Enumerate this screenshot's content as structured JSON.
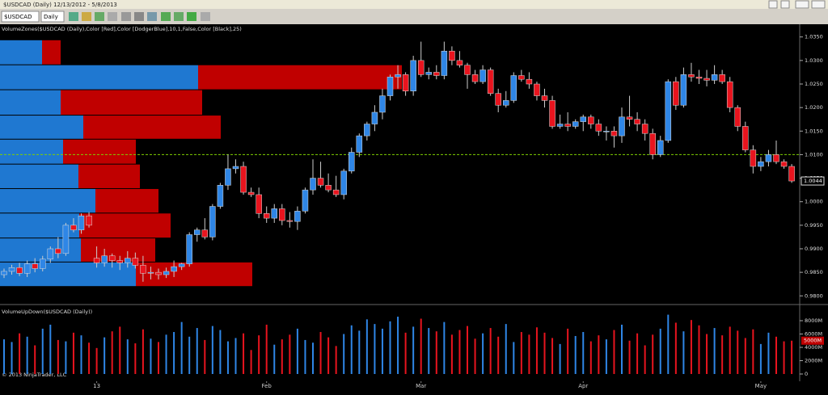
{
  "window_title": "$USDCAD (Daily)  12/13/2012 - 5/8/2013",
  "toolbar": {
    "instrument": "$USDCAD",
    "period": "Daily"
  },
  "chart_data": {
    "type": "candlestick",
    "indicator_label": "VolumeZones($USDCAD (Daily),Color [Red],Color [DodgerBlue],10,1,False,Color [Black],25)",
    "volume_label": "VolumeUpDown($USDCAD (Daily))",
    "copyright": "© 2013 NinjaTrader, LLC",
    "up_color": "#2f86e6",
    "down_color": "#e8141e",
    "zone_up_color": "#1f78d1",
    "zone_down_color": "#c00000",
    "reference_line": 1.01,
    "reference_color": "#7fd000",
    "last_price": {
      "value": 1.0044,
      "label": "1.0044"
    },
    "last_volume": {
      "value": 5000,
      "label": "5000M"
    },
    "categories": [
      null,
      null,
      null,
      null,
      null,
      null,
      null,
      null,
      null,
      null,
      null,
      null,
      "13",
      null,
      null,
      null,
      null,
      null,
      null,
      null,
      null,
      null,
      null,
      null,
      null,
      null,
      null,
      null,
      null,
      null,
      null,
      null,
      null,
      null,
      "Feb",
      null,
      null,
      null,
      null,
      null,
      null,
      null,
      null,
      null,
      null,
      null,
      null,
      null,
      null,
      null,
      null,
      null,
      null,
      null,
      "Mar",
      null,
      null,
      null,
      null,
      null,
      null,
      null,
      null,
      null,
      null,
      null,
      null,
      null,
      null,
      null,
      null,
      null,
      null,
      null,
      null,
      "Apr",
      null,
      null,
      null,
      null,
      null,
      null,
      null,
      null,
      null,
      null,
      null,
      null,
      null,
      null,
      null,
      null,
      null,
      null,
      null,
      null,
      null,
      null,
      "May",
      null,
      null,
      null,
      null
    ],
    "ohlc": [
      [
        0.9845,
        0.9858,
        0.9838,
        0.9852
      ],
      [
        0.9852,
        0.9866,
        0.9845,
        0.986
      ],
      [
        0.986,
        0.987,
        0.9842,
        0.9848
      ],
      [
        0.9848,
        0.9875,
        0.984,
        0.9868
      ],
      [
        0.9868,
        0.988,
        0.985,
        0.9858
      ],
      [
        0.9858,
        0.9885,
        0.9852,
        0.9878
      ],
      [
        0.9878,
        0.9905,
        0.987,
        0.99
      ],
      [
        0.99,
        0.9925,
        0.988,
        0.989
      ],
      [
        0.989,
        0.9955,
        0.9885,
        0.995
      ],
      [
        0.995,
        0.9965,
        0.9935,
        0.994
      ],
      [
        0.994,
        0.9975,
        0.9932,
        0.997
      ],
      [
        0.997,
        0.9978,
        0.9945,
        0.995
      ],
      [
        0.988,
        0.9905,
        0.986,
        0.987
      ],
      [
        0.987,
        0.99,
        0.9862,
        0.9885
      ],
      [
        0.9885,
        0.989,
        0.986,
        0.9875
      ],
      [
        0.9875,
        0.9885,
        0.9855,
        0.987
      ],
      [
        0.987,
        0.9895,
        0.986,
        0.988
      ],
      [
        0.988,
        0.9892,
        0.9858,
        0.9865
      ],
      [
        0.9865,
        0.9885,
        0.983,
        0.9848
      ],
      [
        0.9848,
        0.9862,
        0.9835,
        0.985
      ],
      [
        0.985,
        0.9858,
        0.9835,
        0.9845
      ],
      [
        0.9845,
        0.986,
        0.9838,
        0.9852
      ],
      [
        0.9852,
        0.9875,
        0.984,
        0.9862
      ],
      [
        0.9862,
        0.987,
        0.9855,
        0.9868
      ],
      [
        0.9868,
        0.9935,
        0.9862,
        0.993
      ],
      [
        0.993,
        0.9945,
        0.9915,
        0.994
      ],
      [
        0.994,
        0.9965,
        0.992,
        0.9925
      ],
      [
        0.9925,
        0.9995,
        0.9918,
        0.999
      ],
      [
        0.999,
        1.004,
        0.9985,
        1.0035
      ],
      [
        1.0035,
        1.01,
        1.0025,
        1.007
      ],
      [
        1.007,
        1.009,
        1.006,
        1.0075
      ],
      [
        1.0075,
        1.0085,
        1.0015,
        1.002
      ],
      [
        1.002,
        1.003,
        1.001,
        1.0015
      ],
      [
        1.0015,
        1.003,
        0.9965,
        0.9975
      ],
      [
        0.9975,
        0.999,
        0.9955,
        0.9965
      ],
      [
        0.9965,
        0.9995,
        0.9955,
        0.9985
      ],
      [
        0.9985,
        0.9995,
        0.995,
        0.996
      ],
      [
        0.996,
        0.9978,
        0.9945,
        0.9958
      ],
      [
        0.9958,
        0.999,
        0.994,
        0.998
      ],
      [
        0.998,
        1.003,
        0.9975,
        1.0025
      ],
      [
        1.0025,
        1.009,
        1.0015,
        1.005
      ],
      [
        1.005,
        1.0085,
        1.003,
        1.0035
      ],
      [
        1.0035,
        1.006,
        1.002,
        1.0025
      ],
      [
        1.0025,
        1.0055,
        1.001,
        1.0015
      ],
      [
        1.0015,
        1.007,
        1.0005,
        1.0065
      ],
      [
        1.0065,
        1.0115,
        1.006,
        1.0105
      ],
      [
        1.0105,
        1.0145,
        1.0095,
        1.014
      ],
      [
        1.014,
        1.017,
        1.013,
        1.0165
      ],
      [
        1.0165,
        1.0205,
        1.015,
        1.019
      ],
      [
        1.019,
        1.024,
        1.0175,
        1.0225
      ],
      [
        1.0225,
        1.027,
        1.0215,
        1.0265
      ],
      [
        1.0265,
        1.029,
        1.024,
        1.027
      ],
      [
        1.027,
        1.0275,
        1.0225,
        1.0235
      ],
      [
        1.0235,
        1.031,
        1.0225,
        1.03
      ],
      [
        1.03,
        1.034,
        1.0265,
        1.027
      ],
      [
        1.027,
        1.0285,
        1.026,
        1.0275
      ],
      [
        1.0275,
        1.029,
        1.026,
        1.0268
      ],
      [
        1.0268,
        1.034,
        1.026,
        1.032
      ],
      [
        1.032,
        1.033,
        1.029,
        1.03
      ],
      [
        1.03,
        1.032,
        1.0285,
        1.029
      ],
      [
        1.029,
        1.0295,
        1.024,
        1.027
      ],
      [
        1.027,
        1.028,
        1.025,
        1.0255
      ],
      [
        1.0255,
        1.029,
        1.025,
        1.028
      ],
      [
        1.028,
        1.0285,
        1.0225,
        1.023
      ],
      [
        1.023,
        1.024,
        1.019,
        1.0205
      ],
      [
        1.0205,
        1.0235,
        1.02,
        1.0215
      ],
      [
        1.0215,
        1.0275,
        1.021,
        1.0268
      ],
      [
        1.0268,
        1.028,
        1.0255,
        1.026
      ],
      [
        1.026,
        1.0275,
        1.024,
        1.025
      ],
      [
        1.025,
        1.0255,
        1.0215,
        1.0225
      ],
      [
        1.0225,
        1.024,
        1.02,
        1.0215
      ],
      [
        1.0215,
        1.0225,
        1.0155,
        1.016
      ],
      [
        1.016,
        1.0185,
        1.0155,
        1.0165
      ],
      [
        1.0165,
        1.019,
        1.015,
        1.016
      ],
      [
        1.016,
        1.0175,
        1.0155,
        1.017
      ],
      [
        1.017,
        1.0185,
        1.015,
        1.018
      ],
      [
        1.018,
        1.0185,
        1.0155,
        1.0165
      ],
      [
        1.0165,
        1.0175,
        1.014,
        1.015
      ],
      [
        1.015,
        1.016,
        1.013,
        1.015
      ],
      [
        1.015,
        1.016,
        1.0115,
        1.014
      ],
      [
        1.014,
        1.02,
        1.0125,
        1.018
      ],
      [
        1.018,
        1.0225,
        1.016,
        1.0175
      ],
      [
        1.0175,
        1.019,
        1.015,
        1.0165
      ],
      [
        1.0165,
        1.0175,
        1.013,
        1.0145
      ],
      [
        1.0145,
        1.0155,
        1.009,
        1.01
      ],
      [
        1.01,
        1.014,
        1.0095,
        1.013
      ],
      [
        1.013,
        1.026,
        1.0125,
        1.0255
      ],
      [
        1.0255,
        1.0265,
        1.0195,
        1.0205
      ],
      [
        1.0205,
        1.0285,
        1.02,
        1.027
      ],
      [
        1.027,
        1.0295,
        1.0255,
        1.0265
      ],
      [
        1.0265,
        1.028,
        1.025,
        1.0262
      ],
      [
        1.0262,
        1.028,
        1.0245,
        1.0258
      ],
      [
        1.0258,
        1.029,
        1.025,
        1.027
      ],
      [
        1.027,
        1.028,
        1.025,
        1.0255
      ],
      [
        1.0255,
        1.0265,
        1.019,
        1.02
      ],
      [
        1.02,
        1.0205,
        1.015,
        1.016
      ],
      [
        1.016,
        1.017,
        1.0105,
        1.011
      ],
      [
        1.011,
        1.012,
        1.006,
        1.0075
      ],
      [
        1.0075,
        1.0095,
        1.0065,
        1.0085
      ],
      [
        1.0085,
        1.011,
        1.0075,
        1.01
      ],
      [
        1.01,
        1.013,
        1.008,
        1.0085
      ],
      [
        1.0085,
        1.009,
        1.007,
        1.0075
      ],
      [
        1.0075,
        1.008,
        1.004,
        1.0044
      ]
    ],
    "volume": [
      5200,
      4800,
      6100,
      5600,
      4300,
      6800,
      7400,
      5100,
      4900,
      6200,
      5800,
      4700,
      3900,
      5500,
      6400,
      7100,
      5200,
      4600,
      6700,
      5300,
      4800,
      5900,
      6300,
      7800,
      5600,
      6900,
      5100,
      7200,
      6600,
      4900,
      5400,
      6100,
      3600,
      5800,
      7400,
      4400,
      5200,
      5900,
      6800,
      5100,
      4700,
      6300,
      5500,
      4200,
      6000,
      7300,
      6500,
      8200,
      7500,
      6800,
      7900,
      8600,
      6200,
      7100,
      8300,
      6900,
      6400,
      7800,
      5900,
      6600,
      7200,
      5300,
      6100,
      6900,
      5600,
      7500,
      4800,
      6300,
      5900,
      7000,
      6200,
      5400,
      4500,
      6800,
      5700,
      6300,
      4900,
      5800,
      5200,
      6600,
      7400,
      5000,
      6100,
      4300,
      5900,
      6800,
      8900,
      7700,
      6400,
      8100,
      7300,
      6000,
      6900,
      5800,
      7100,
      6500,
      5400,
      6700,
      4500,
      6200,
      5600,
      4900,
      5000
    ],
    "zones": [
      {
        "lo": 1.029,
        "hi": 1.0343,
        "up": 5200,
        "down": 2300
      },
      {
        "lo": 1.0237,
        "hi": 1.029,
        "up": 24500,
        "down": 25200
      },
      {
        "lo": 1.0183,
        "hi": 1.0237,
        "up": 7500,
        "down": 17500
      },
      {
        "lo": 1.0132,
        "hi": 1.0183,
        "up": 10300,
        "down": 17000
      },
      {
        "lo": 1.0079,
        "hi": 1.0132,
        "up": 7800,
        "down": 9000
      },
      {
        "lo": 1.0027,
        "hi": 1.0079,
        "up": 9700,
        "down": 7600
      },
      {
        "lo": 0.9975,
        "hi": 1.0027,
        "up": 11800,
        "down": 7800
      },
      {
        "lo": 0.9922,
        "hi": 0.9975,
        "up": 9800,
        "down": 11300
      },
      {
        "lo": 0.9871,
        "hi": 0.9922,
        "up": 10000,
        "down": 9200
      },
      {
        "lo": 0.9819,
        "hi": 0.9871,
        "up": 16800,
        "down": 14400
      }
    ],
    "zone_xlim": [
      0,
      102400
    ],
    "ylim": [
      0.9785,
      1.0377
    ],
    "yticks": [
      {
        "value": 0.98,
        "label": "0.9800"
      },
      {
        "value": 0.985,
        "label": "0.9850"
      },
      {
        "value": 0.99,
        "label": "0.9900"
      },
      {
        "value": 0.995,
        "label": "0.9950"
      },
      {
        "value": 1.0,
        "label": "1.0000"
      },
      {
        "value": 1.005,
        "label": "1.0050"
      },
      {
        "value": 1.01,
        "label": "1.0100"
      },
      {
        "value": 1.015,
        "label": "1.0150"
      },
      {
        "value": 1.02,
        "label": "1.0200"
      },
      {
        "value": 1.025,
        "label": "1.0250"
      },
      {
        "value": 1.03,
        "label": "1.0300"
      },
      {
        "value": 1.035,
        "label": "1.0350"
      }
    ],
    "y2lim": [
      0,
      10060
    ],
    "y2ticks": [
      0,
      {
        "value": 2000,
        "label": "2000M"
      },
      {
        "value": 4000,
        "label": "4000M"
      },
      {
        "value": 6000,
        "label": "6000M"
      },
      {
        "value": 8000,
        "label": "8000M"
      }
    ]
  }
}
